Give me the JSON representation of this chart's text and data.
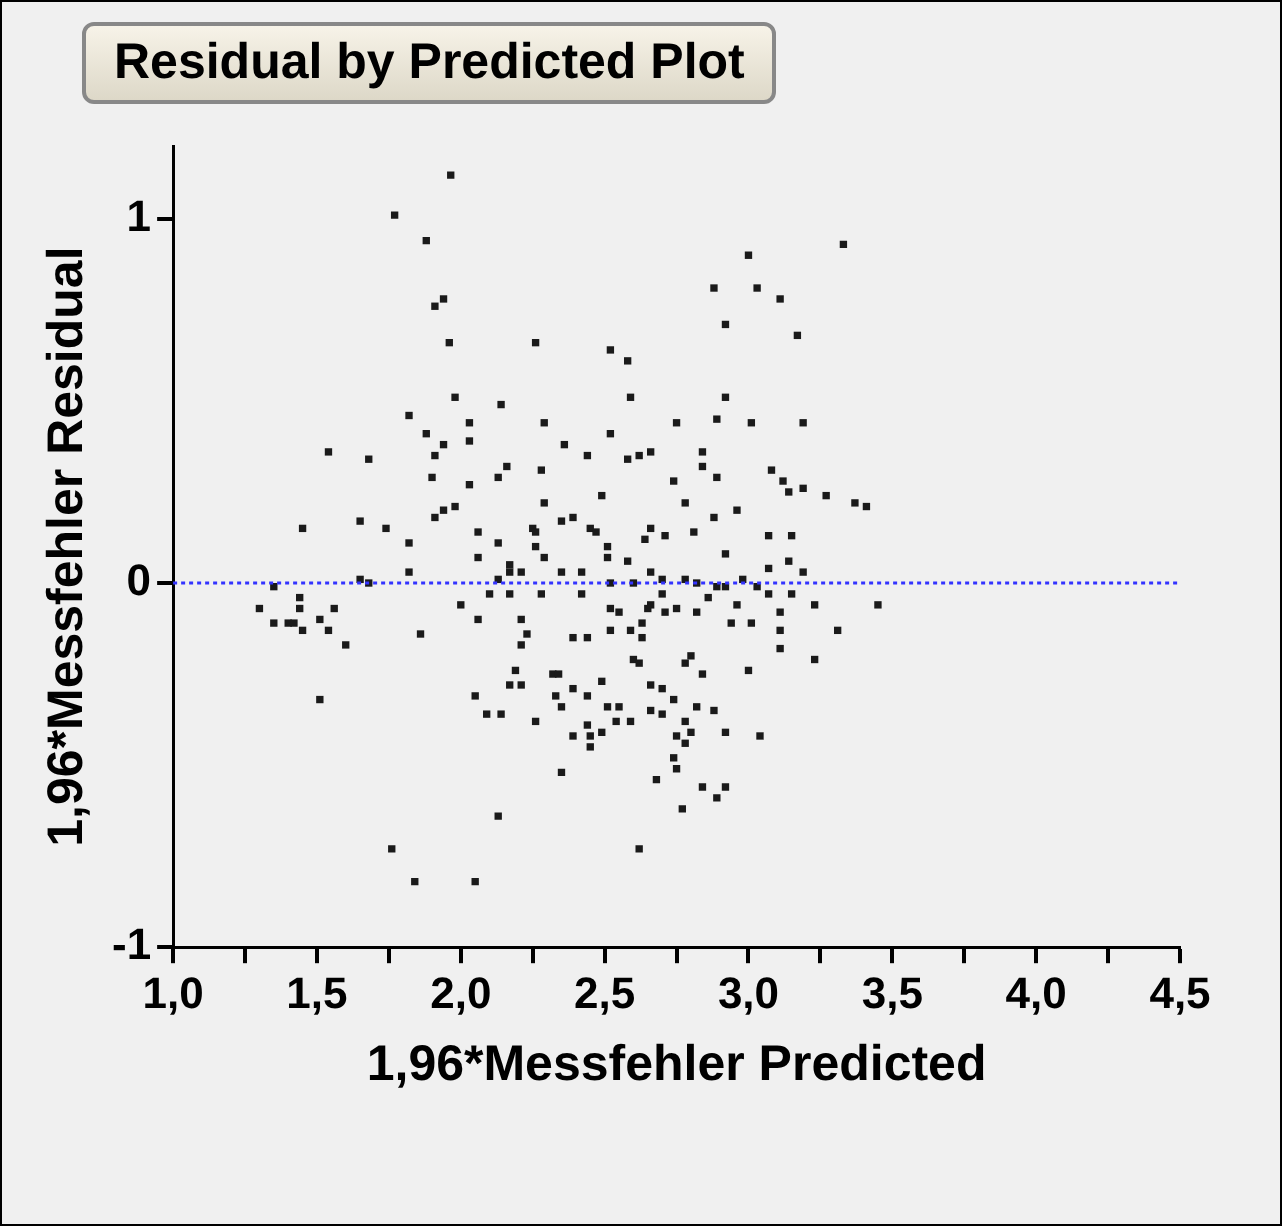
{
  "chart_data": {
    "type": "scatter",
    "title": "Residual by Predicted Plot",
    "xlabel": "1,96*Messfehler Predicted",
    "ylabel": "1,96*Messfehler Residual",
    "color": "#1a1a1a",
    "marker": "square",
    "grid": false,
    "legend": false,
    "xlim": [
      1,
      4.5
    ],
    "xticks": [
      {
        "value": 1,
        "label": "1,0"
      },
      {
        "value": 1.25,
        "label": null
      },
      {
        "value": 1.5,
        "label": "1,5"
      },
      {
        "value": 1.75,
        "label": null
      },
      {
        "value": 2,
        "label": "2,0"
      },
      {
        "value": 2.25,
        "label": null
      },
      {
        "value": 2.5,
        "label": "2,5"
      },
      {
        "value": 2.75,
        "label": null
      },
      {
        "value": 3,
        "label": "3,0"
      },
      {
        "value": 3.25,
        "label": null
      },
      {
        "value": 3.5,
        "label": "3,5"
      },
      {
        "value": 3.75,
        "label": null
      },
      {
        "value": 4,
        "label": "4,0"
      },
      {
        "value": 4.25,
        "label": null
      },
      {
        "value": 4.5,
        "label": "4,5"
      }
    ],
    "ylim": [
      -1,
      1.2
    ],
    "yticks": [
      -1,
      0,
      1
    ],
    "ref_lines": [
      {
        "axis": "y",
        "value": 0,
        "color": "#3333ff",
        "line_style": "dotted"
      }
    ],
    "x": [
      1.965,
      1.77,
      1.88,
      1.91,
      1.94,
      1.96,
      2.26,
      1.82,
      1.98,
      2.14,
      1.88,
      2.03,
      2.03,
      1.94,
      1.91,
      2.29,
      1.54,
      1.68,
      1.9,
      2.03,
      2.16,
      2.13,
      2.28,
      2.29,
      1.45,
      1.65,
      1.74,
      1.82,
      1.91,
      1.94,
      1.98,
      2.06,
      2.13,
      2.25,
      2.26,
      2.26,
      2.29,
      2.06,
      1.82,
      2.17,
      2.21,
      2.17,
      1.65,
      2.13,
      3.33,
      3.0,
      2.88,
      3.03,
      3.11,
      2.92,
      3.17,
      2.52,
      2.58,
      2.59,
      2.92,
      2.89,
      2.75,
      3.01,
      3.19,
      2.52,
      2.36,
      2.44,
      2.58,
      2.62,
      2.66,
      2.84,
      2.84,
      2.89,
      2.74,
      3.08,
      3.12,
      3.14,
      3.19,
      3.27,
      3.37,
      3.41,
      2.49,
      2.78,
      2.96,
      2.88,
      2.35,
      2.39,
      2.45,
      2.47,
      2.66,
      2.64,
      2.71,
      2.81,
      3.07,
      3.15,
      2.51,
      2.51,
      2.92,
      2.58,
      3.14,
      3.07,
      3.19,
      2.35,
      2.42,
      2.66,
      2.7,
      2.98,
      1.35,
      1.68,
      1.3,
      1.44,
      1.44,
      1.56,
      1.35,
      1.4,
      1.42,
      1.45,
      1.51,
      1.54,
      1.6,
      1.86,
      1.51,
      2.0,
      2.06,
      2.1,
      2.17,
      2.21,
      2.23,
      2.21,
      2.28,
      2.19,
      2.17,
      2.21,
      2.05,
      2.09,
      2.14,
      2.26,
      2.32,
      2.13,
      1.76,
      1.84,
      2.05,
      2.42,
      2.7,
      2.52,
      2.6,
      2.78,
      2.82,
      2.89,
      2.92,
      3.03,
      3.07,
      3.15,
      2.52,
      2.55,
      2.65,
      2.66,
      2.71,
      2.75,
      2.82,
      2.86,
      2.96,
      3.01,
      2.94,
      3.11,
      3.11,
      3.11,
      3.23,
      3.45,
      3.31,
      3.23,
      2.63,
      2.59,
      2.52,
      2.63,
      2.39,
      2.44,
      2.6,
      2.62,
      2.8,
      2.78,
      2.84,
      3.0,
      2.34,
      2.49,
      2.66,
      2.7,
      2.33,
      2.39,
      2.44,
      2.74,
      2.51,
      2.55,
      2.66,
      2.7,
      2.82,
      2.88,
      2.35,
      2.54,
      2.59,
      2.78,
      2.44,
      2.49,
      2.8,
      2.92,
      2.39,
      2.45,
      2.45,
      2.75,
      2.78,
      3.04,
      2.74,
      2.75,
      2.35,
      2.68,
      2.84,
      2.92,
      2.89,
      2.77,
      2.62
    ],
    "values": [
      1.12,
      1.01,
      0.94,
      0.76,
      0.78,
      0.66,
      0.66,
      0.46,
      0.51,
      0.49,
      0.41,
      0.44,
      0.39,
      0.38,
      0.35,
      0.44,
      0.36,
      0.34,
      0.29,
      0.27,
      0.32,
      0.29,
      0.31,
      0.22,
      0.15,
      0.17,
      0.15,
      0.11,
      0.18,
      0.2,
      0.21,
      0.14,
      0.11,
      0.15,
      0.14,
      0.1,
      0.07,
      0.07,
      0.03,
      0.05,
      0.03,
      0.03,
      0.01,
      0.01,
      0.93,
      0.9,
      0.81,
      0.81,
      0.78,
      0.71,
      0.68,
      0.64,
      0.61,
      0.51,
      0.51,
      0.45,
      0.44,
      0.44,
      0.44,
      0.41,
      0.38,
      0.35,
      0.34,
      0.35,
      0.36,
      0.36,
      0.32,
      0.29,
      0.28,
      0.31,
      0.28,
      0.25,
      0.26,
      0.24,
      0.22,
      0.21,
      0.24,
      0.22,
      0.2,
      0.18,
      0.17,
      0.18,
      0.15,
      0.14,
      0.15,
      0.12,
      0.13,
      0.14,
      0.13,
      0.13,
      0.1,
      0.07,
      0.08,
      0.06,
      0.06,
      0.04,
      0.03,
      0.03,
      0.03,
      0.03,
      0.01,
      0.01,
      -0.01,
      0.0,
      -0.07,
      -0.04,
      -0.07,
      -0.07,
      -0.11,
      -0.11,
      -0.11,
      -0.13,
      -0.1,
      -0.13,
      -0.17,
      -0.14,
      -0.32,
      -0.06,
      -0.1,
      -0.03,
      -0.03,
      -0.1,
      -0.14,
      -0.17,
      -0.03,
      -0.24,
      -0.28,
      -0.28,
      -0.31,
      -0.36,
      -0.36,
      -0.38,
      -0.25,
      -0.64,
      -0.73,
      -0.82,
      -0.82,
      -0.03,
      -0.03,
      0.0,
      0.0,
      0.01,
      0.0,
      -0.01,
      -0.01,
      -0.01,
      -0.03,
      -0.03,
      -0.07,
      -0.08,
      -0.07,
      -0.06,
      -0.08,
      -0.07,
      -0.08,
      -0.04,
      -0.06,
      -0.11,
      -0.11,
      -0.08,
      -0.13,
      -0.18,
      -0.06,
      -0.06,
      -0.13,
      -0.21,
      -0.11,
      -0.13,
      -0.13,
      -0.15,
      -0.15,
      -0.15,
      -0.21,
      -0.22,
      -0.2,
      -0.22,
      -0.25,
      -0.24,
      -0.25,
      -0.27,
      -0.28,
      -0.29,
      -0.31,
      -0.29,
      -0.31,
      -0.32,
      -0.34,
      -0.34,
      -0.35,
      -0.36,
      -0.34,
      -0.35,
      -0.34,
      -0.38,
      -0.38,
      -0.38,
      -0.39,
      -0.41,
      -0.41,
      -0.41,
      -0.42,
      -0.42,
      -0.45,
      -0.42,
      -0.44,
      -0.42,
      -0.48,
      -0.51,
      -0.52,
      -0.54,
      -0.56,
      -0.56,
      -0.59,
      -0.62,
      -0.73
    ]
  }
}
